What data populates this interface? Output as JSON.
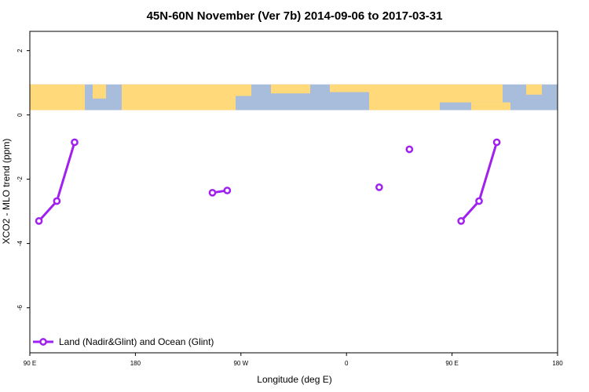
{
  "colors": {
    "series": "#a020f0",
    "ocean": "#a8bcdc",
    "land": "#ffd97a",
    "axis": "#000000"
  },
  "chart_data": {
    "type": "line",
    "title": "45N-60N November (Ver 7b)   2014-09-06 to 2017-03-31",
    "xlabel": "Longitude (deg E)",
    "ylabel": "XCO2 - MLO trend (ppm)",
    "xlim": [
      90,
      340
    ],
    "ylim": [
      -7.4,
      2.6
    ],
    "x_ticks": [
      {
        "value": 90,
        "label": "90 E"
      },
      {
        "value": 140,
        "label": "180"
      },
      {
        "value": 190,
        "label": "90 W"
      },
      {
        "value": 240,
        "label": "0"
      },
      {
        "value": 290,
        "label": "90 E"
      },
      {
        "value": 340,
        "label": "180"
      }
    ],
    "y_ticks": [
      {
        "value": 2,
        "label": "2"
      },
      {
        "value": 0,
        "label": "0"
      },
      {
        "value": -2,
        "label": "-2"
      },
      {
        "value": -4,
        "label": "-4"
      },
      {
        "value": -6,
        "label": "-6"
      }
    ],
    "map_band": {
      "ymin": 0.15,
      "ymax": 0.95
    },
    "series": [
      {
        "name": "Land (Nadir&Glint) and Ocean (Glint)",
        "segments": [
          [
            {
              "x": 94.3,
              "y": -3.3
            },
            {
              "x": 102.8,
              "y": -2.68
            },
            {
              "x": 111.2,
              "y": -0.85
            }
          ],
          [
            {
              "x": 176.5,
              "y": -2.42
            },
            {
              "x": 183.5,
              "y": -2.35
            }
          ],
          [
            {
              "x": 255.5,
              "y": -2.25
            }
          ],
          [
            {
              "x": 269.8,
              "y": -1.07
            }
          ],
          [
            {
              "x": 294.3,
              "y": -3.3
            },
            {
              "x": 302.8,
              "y": -2.68
            },
            {
              "x": 311.2,
              "y": -0.85
            }
          ]
        ]
      }
    ],
    "legend_position": "bottom-left"
  }
}
